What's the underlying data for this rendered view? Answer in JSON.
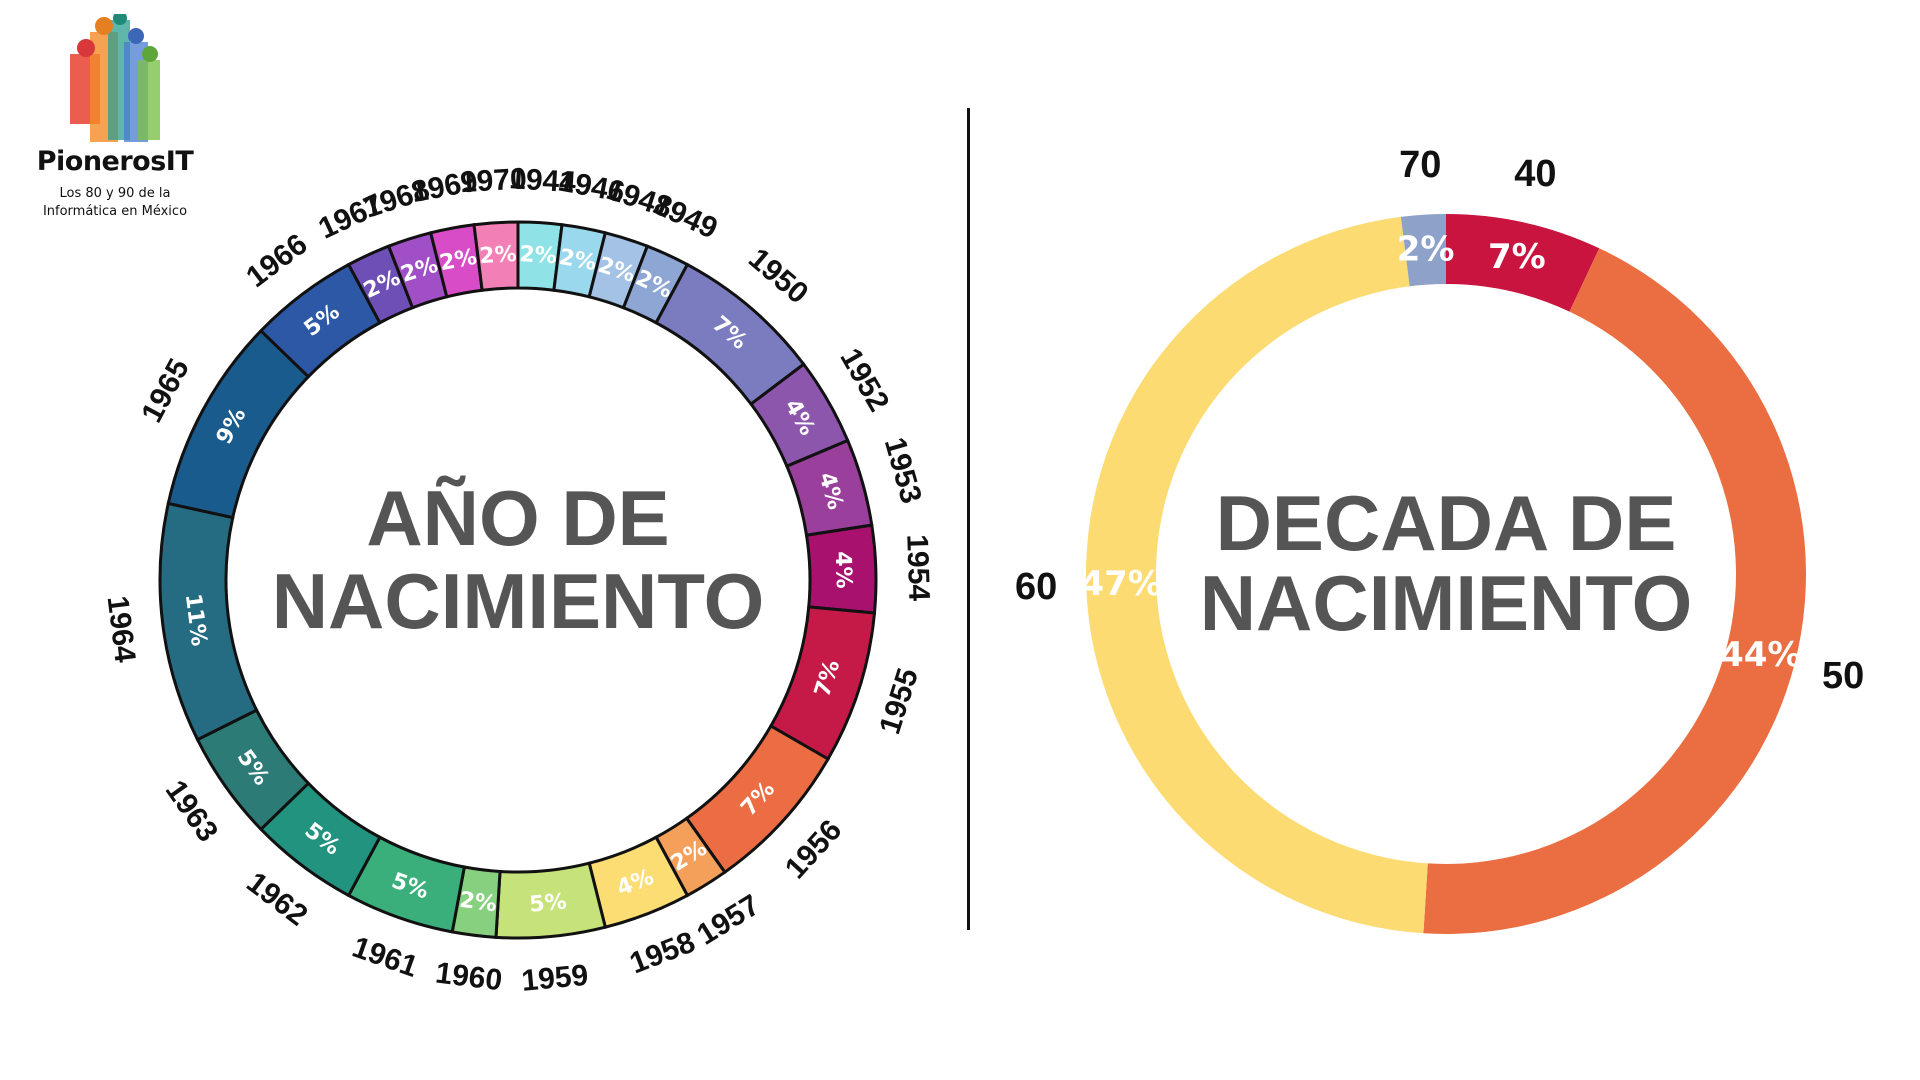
{
  "logo": {
    "title": "PionerosIT",
    "subtitle_line1": "Los 80 y 90 de la",
    "subtitle_line2": "Informática en México"
  },
  "chart_data": [
    {
      "type": "pie",
      "donut": true,
      "title_line1": "AÑO DE",
      "title_line2": "NACIMIENTO",
      "slices": [
        {
          "label": "1944",
          "value": 2,
          "value_label": "2%",
          "color": "#8fe3e6"
        },
        {
          "label": "1946",
          "value": 2,
          "value_label": "2%",
          "color": "#9ad8ee"
        },
        {
          "label": "1948",
          "value": 2,
          "value_label": "2%",
          "color": "#a3c2e6"
        },
        {
          "label": "1949",
          "value": 2,
          "value_label": "2%",
          "color": "#8ea6d3"
        },
        {
          "label": "1950",
          "value": 7,
          "value_label": "7%",
          "color": "#7b7cbf"
        },
        {
          "label": "1952",
          "value": 4,
          "value_label": "4%",
          "color": "#8c56ad"
        },
        {
          "label": "1953",
          "value": 4,
          "value_label": "4%",
          "color": "#9b3f9c"
        },
        {
          "label": "1954",
          "value": 4,
          "value_label": "4%",
          "color": "#a8126e"
        },
        {
          "label": "1955",
          "value": 7,
          "value_label": "7%",
          "color": "#c51a47"
        },
        {
          "label": "1956",
          "value": 7,
          "value_label": "7%",
          "color": "#ec6d43"
        },
        {
          "label": "1957",
          "value": 2,
          "value_label": "2%",
          "color": "#f4a05b"
        },
        {
          "label": "1958",
          "value": 4,
          "value_label": "4%",
          "color": "#fbdd74"
        },
        {
          "label": "1959",
          "value": 5,
          "value_label": "5%",
          "color": "#c6e27a"
        },
        {
          "label": "1960",
          "value": 2,
          "value_label": "2%",
          "color": "#86d07f"
        },
        {
          "label": "1961",
          "value": 5,
          "value_label": "5%",
          "color": "#3aaf7c"
        },
        {
          "label": "1962",
          "value": 5,
          "value_label": "5%",
          "color": "#21937f"
        },
        {
          "label": "1963",
          "value": 5,
          "value_label": "5%",
          "color": "#2d7b77"
        },
        {
          "label": "1964",
          "value": 11,
          "value_label": "11%",
          "color": "#256c82"
        },
        {
          "label": "1965",
          "value": 9,
          "value_label": "9%",
          "color": "#1a5b8e"
        },
        {
          "label": "1966",
          "value": 5,
          "value_label": "5%",
          "color": "#2c58a6"
        },
        {
          "label": "1967",
          "value": 2,
          "value_label": "2%",
          "color": "#6e4fb5"
        },
        {
          "label": "1968",
          "value": 2,
          "value_label": "2%",
          "color": "#a04fc7"
        },
        {
          "label": "1969",
          "value": 2,
          "value_label": "2%",
          "color": "#d94cc7"
        },
        {
          "label": "1970",
          "value": 2,
          "value_label": "2%",
          "color": "#f27fb5"
        }
      ]
    },
    {
      "type": "pie",
      "donut": true,
      "title_line1": "DECADA DE",
      "title_line2": "NACIMIENTO",
      "slices": [
        {
          "label": "40",
          "value": 7,
          "value_label": "7%",
          "color": "#c8143f"
        },
        {
          "label": "50",
          "value": 44,
          "value_label": "44%",
          "color": "#ea6e42"
        },
        {
          "label": "60",
          "value": 47,
          "value_label": "47%",
          "color": "#fbdb72"
        },
        {
          "label": "70",
          "value": 2,
          "value_label": "2%",
          "color": "#8ea2c9"
        }
      ]
    }
  ]
}
